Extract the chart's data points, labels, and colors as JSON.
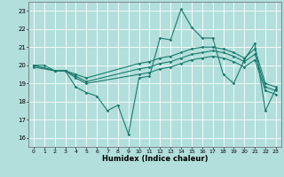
{
  "title": "",
  "xlabel": "Humidex (Indice chaleur)",
  "bg_color": "#b2dfdb",
  "grid_color": "#ffffff",
  "line_color": "#1a7a6e",
  "xlim": [
    -0.5,
    23.5
  ],
  "ylim": [
    15.5,
    23.5
  ],
  "yticks": [
    16,
    17,
    18,
    19,
    20,
    21,
    22,
    23
  ],
  "xticks": [
    0,
    1,
    2,
    3,
    4,
    5,
    6,
    7,
    8,
    9,
    10,
    11,
    12,
    13,
    14,
    15,
    16,
    17,
    18,
    19,
    20,
    21,
    22,
    23
  ],
  "lines": [
    {
      "x": [
        0,
        1,
        2,
        3,
        4,
        5,
        6,
        7,
        8,
        9,
        10,
        11,
        12,
        13,
        14,
        15,
        16,
        17,
        18,
        19,
        20,
        21,
        22,
        23
      ],
      "y": [
        20.0,
        20.0,
        19.7,
        19.7,
        18.8,
        18.5,
        18.3,
        17.5,
        17.8,
        16.2,
        19.3,
        19.4,
        21.5,
        21.4,
        23.1,
        22.1,
        21.5,
        21.5,
        19.5,
        19.0,
        20.3,
        21.2,
        17.5,
        18.7
      ]
    },
    {
      "x": [
        0,
        2,
        3,
        4,
        5,
        10,
        11,
        12,
        13,
        14,
        15,
        16,
        17,
        18,
        19,
        20,
        21,
        22,
        23
      ],
      "y": [
        20.0,
        19.7,
        19.7,
        19.5,
        19.3,
        20.1,
        20.2,
        20.4,
        20.5,
        20.7,
        20.9,
        21.0,
        21.0,
        20.9,
        20.7,
        20.4,
        20.9,
        19.0,
        18.8
      ]
    },
    {
      "x": [
        0,
        2,
        3,
        4,
        5,
        10,
        11,
        12,
        13,
        14,
        15,
        16,
        17,
        18,
        19,
        20,
        21,
        22,
        23
      ],
      "y": [
        20.0,
        19.7,
        19.7,
        19.4,
        19.1,
        19.8,
        19.9,
        20.1,
        20.2,
        20.4,
        20.6,
        20.7,
        20.8,
        20.7,
        20.5,
        20.2,
        20.6,
        18.8,
        18.6
      ]
    },
    {
      "x": [
        0,
        2,
        3,
        4,
        5,
        10,
        11,
        12,
        13,
        14,
        15,
        16,
        17,
        18,
        19,
        20,
        21,
        22,
        23
      ],
      "y": [
        19.9,
        19.7,
        19.7,
        19.3,
        19.0,
        19.5,
        19.6,
        19.8,
        19.9,
        20.1,
        20.3,
        20.4,
        20.5,
        20.4,
        20.2,
        19.9,
        20.3,
        18.6,
        18.4
      ]
    }
  ]
}
